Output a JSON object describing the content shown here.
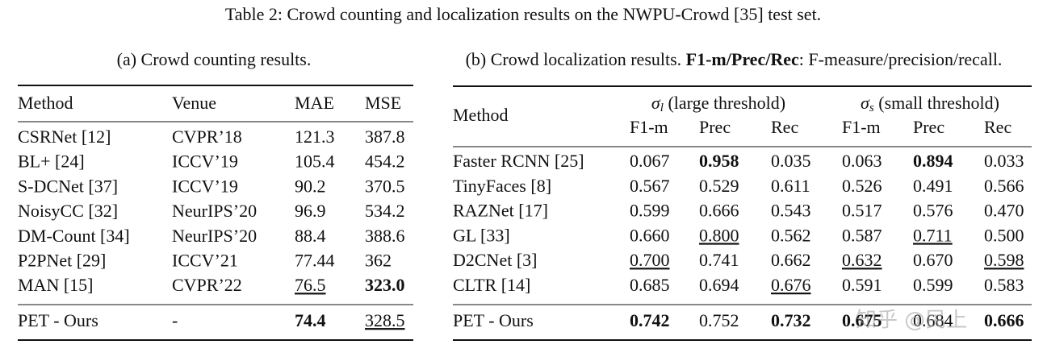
{
  "title": "Table 2: Crowd counting and localization results on the NWPU-Crowd [35] test set.",
  "left_table": {
    "caption": "(a) Crowd counting results.",
    "header": [
      "Method",
      "Venue",
      "MAE",
      "MSE"
    ],
    "rows": [
      [
        "CSRNet [12]",
        "CVPR’18",
        "121.3",
        "387.8"
      ],
      [
        "BL+ [24]",
        "ICCV’19",
        "105.4",
        "454.2"
      ],
      [
        "S-DCNet [37]",
        "ICCV’19",
        "90.2",
        "370.5"
      ],
      [
        "NoisyCC [32]",
        "NeurIPS’20",
        "96.9",
        "534.2"
      ],
      [
        "DM-Count [34]",
        "NeurIPS’20",
        "88.4",
        "388.6"
      ],
      [
        "P2PNet [29]",
        "ICCV’21",
        "77.44",
        "362"
      ],
      [
        "MAN [15]",
        "CVPR’22",
        "76.5",
        "323.0"
      ],
      [
        "PET - Ours",
        "-",
        "74.4",
        "328.5"
      ]
    ]
  },
  "right_table": {
    "caption": [
      "(b) Crowd localization results. ",
      "F1-m/Prec/Rec",
      ": F-measure/precision/recall."
    ],
    "method_header": "Method",
    "groups": [
      [
        "σ",
        "l",
        " (large threshold)"
      ],
      [
        "σ",
        "s",
        " (small threshold)"
      ]
    ],
    "header": [
      "F1-m",
      "Prec",
      "Rec",
      "F1-m",
      "Prec",
      "Rec"
    ],
    "rows": [
      [
        "Faster RCNN [25]",
        "0.067",
        "0.958",
        "0.035",
        "0.063",
        "0.894",
        "0.033"
      ],
      [
        "TinyFaces [8]",
        "0.567",
        "0.529",
        "0.611",
        "0.526",
        "0.491",
        "0.566"
      ],
      [
        "RAZNet [17]",
        "0.599",
        "0.666",
        "0.543",
        "0.517",
        "0.576",
        "0.470"
      ],
      [
        "GL [33]",
        "0.660",
        "0.800",
        "0.562",
        "0.587",
        "0.711",
        "0.500"
      ],
      [
        "D2CNet [3]",
        "0.700",
        "0.741",
        "0.662",
        "0.632",
        "0.670",
        "0.598"
      ],
      [
        "CLTR [14]",
        "0.685",
        "0.694",
        "0.676",
        "0.591",
        "0.599",
        "0.583"
      ],
      [
        "PET - Ours",
        "0.742",
        "0.752",
        "0.732",
        "0.675",
        "0.684",
        "0.666"
      ]
    ]
  },
  "watermark": "知乎 @民上"
}
